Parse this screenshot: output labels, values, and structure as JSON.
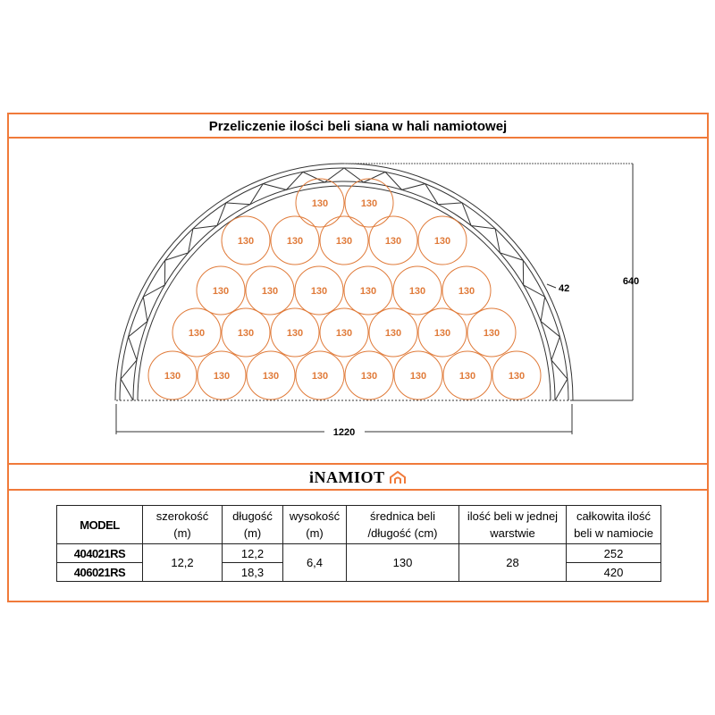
{
  "title": "Przeliczenie ilości beli siana w hali namiotowej",
  "diagram": {
    "bale_label": "130",
    "bale_count": 28,
    "rows": [
      2,
      5,
      6,
      7,
      8
    ],
    "height_label": "640",
    "width_label": "1220",
    "truss_label": "42",
    "bale_color": "#e07b3a",
    "frame_color": "#f07a3a"
  },
  "logo": {
    "text": "iNAMIOT",
    "icon": "tent-house-icon"
  },
  "table": {
    "headers": [
      {
        "l1": "MODEL",
        "l2": ""
      },
      {
        "l1": "szerokość",
        "l2": "(m)"
      },
      {
        "l1": "długość",
        "l2": "(m)"
      },
      {
        "l1": "wysokość",
        "l2": "(m)"
      },
      {
        "l1": "średnica beli",
        "l2": "/długość (cm)"
      },
      {
        "l1": "ilość beli w jednej",
        "l2": "warstwie"
      },
      {
        "l1": "całkowita ilość",
        "l2": "beli w namiocie"
      }
    ],
    "rows": [
      {
        "model": "404021RS",
        "width": "12,2",
        "length": "12,2",
        "height": "6,4",
        "diameter": "130",
        "per_layer": "28",
        "total": "252"
      },
      {
        "model": "406021RS",
        "length": "18,3",
        "total": "420"
      }
    ]
  }
}
